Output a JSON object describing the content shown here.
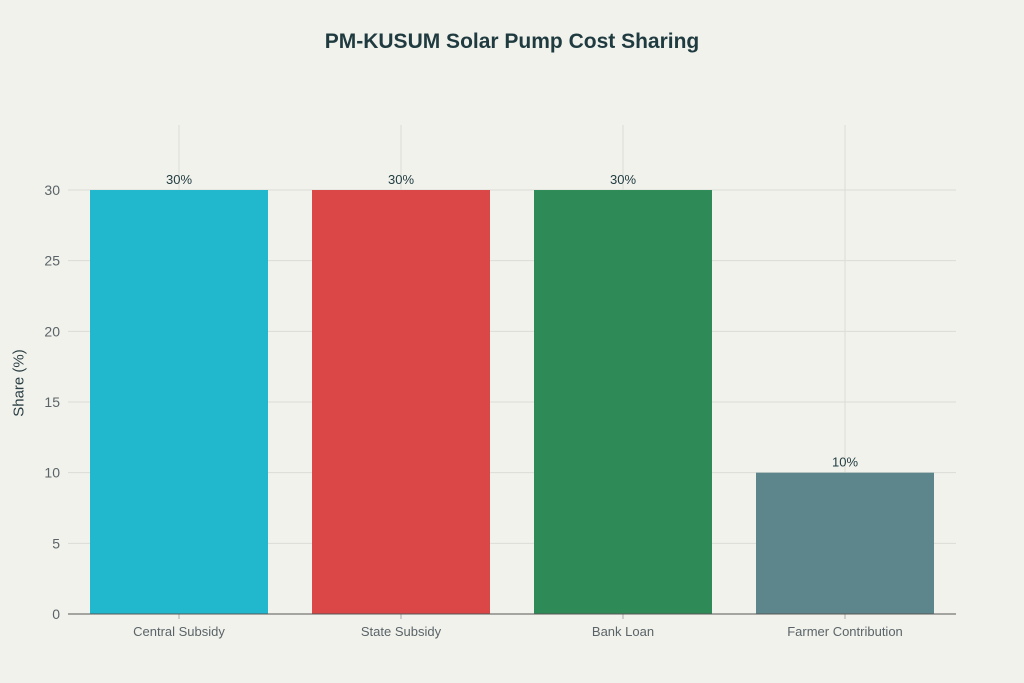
{
  "chart_data": {
    "type": "bar",
    "title": "PM-KUSUM Solar Pump Cost Sharing",
    "xlabel": "",
    "ylabel": "Share (%)",
    "categories": [
      "Central Subsidy",
      "State Subsidy",
      "Bank Loan",
      "Farmer Contribution"
    ],
    "values": [
      30,
      30,
      30,
      10
    ],
    "data_labels": [
      "30%",
      "30%",
      "30%",
      "10%"
    ],
    "colors": [
      "#21b8cd",
      "#db4646",
      "#2e8b57",
      "#5d868c"
    ],
    "ylim": [
      0,
      34.6
    ],
    "yticks": [
      0,
      5,
      10,
      15,
      20,
      25,
      30
    ],
    "grid": true
  }
}
